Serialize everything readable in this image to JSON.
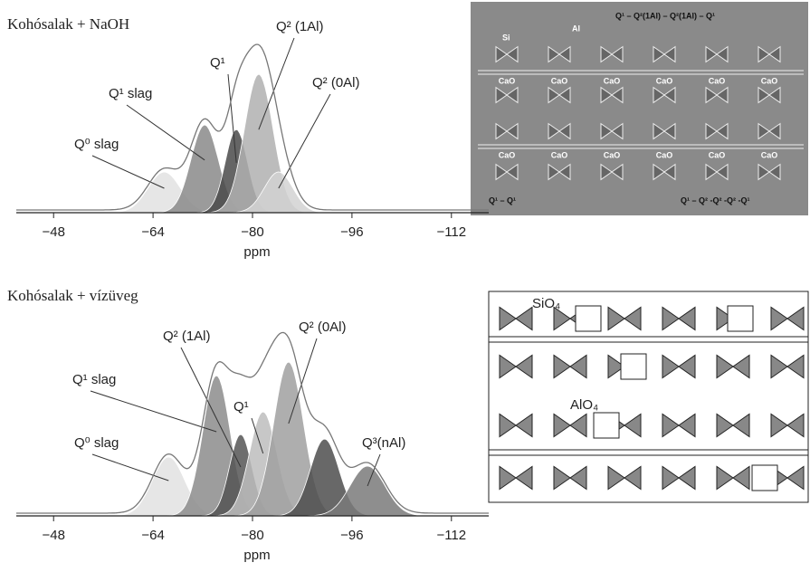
{
  "chart_data": [
    {
      "type": "nmr",
      "title": "Kohósalak + NaOH",
      "x_label": "ppm",
      "xlim": [
        -42,
        -118
      ],
      "ylim": [
        0,
        220
      ],
      "xticks": [
        {
          "value": -48,
          "label": "−48"
        },
        {
          "value": -64,
          "label": "−64"
        },
        {
          "value": -80,
          "label": "−80"
        },
        {
          "value": -96,
          "label": "−96"
        },
        {
          "value": -112,
          "label": "−112"
        }
      ],
      "series": [
        {
          "name": "Q⁰ slag",
          "color": "#e2e2e2",
          "center": -65.8,
          "height": 45,
          "width": 2.6
        },
        {
          "name": "Q¹ slag",
          "color": "#8a8a8a",
          "center": -72.3,
          "height": 97,
          "width": 2.2
        },
        {
          "name": "Q¹",
          "color": "#4a4a4a",
          "center": -77.4,
          "height": 92,
          "width": 1.8
        },
        {
          "name": "Q² (1Al)",
          "color": "#b0b0b0",
          "center": -81,
          "height": 153,
          "width": 2.3
        },
        {
          "name": "Q² (0Al)",
          "color": "#d2d2d2",
          "center": -84.2,
          "height": 45,
          "width": 2.3
        }
      ]
    },
    {
      "type": "nmr",
      "title": "Kohósalak + vízüveg",
      "x_label": "ppm",
      "xlim": [
        -42,
        -118
      ],
      "ylim": [
        0,
        220
      ],
      "xticks": [
        {
          "value": -48,
          "label": "−48"
        },
        {
          "value": -64,
          "label": "−64"
        },
        {
          "value": -80,
          "label": "−80"
        },
        {
          "value": -96,
          "label": "−96"
        },
        {
          "value": -112,
          "label": "−112"
        }
      ],
      "series": [
        {
          "name": "Q⁰ slag",
          "color": "#e2e2e2",
          "center": -66.5,
          "height": 65,
          "width": 2.6
        },
        {
          "name": "Q¹ slag",
          "color": "#8c8c8c",
          "center": -74.2,
          "height": 155,
          "width": 2.2
        },
        {
          "name": "Q² (1Al)",
          "color": "#555555",
          "center": -78.1,
          "height": 90,
          "width": 1.8
        },
        {
          "name": "Q¹",
          "color": "#bdbdbd",
          "center": -81.7,
          "height": 115,
          "width": 2.2
        },
        {
          "name": "Q² (0Al)",
          "color": "#a0a0a0",
          "center": -85.8,
          "height": 170,
          "width": 2.4
        },
        {
          "color": "#4d4d4d",
          "center": -91.6,
          "height": 85,
          "width": 2.3
        },
        {
          "name": "Q³(nAl)",
          "color": "#7a7a7a",
          "center": -98.5,
          "height": 55,
          "width": 2.8
        }
      ]
    }
  ],
  "diagram_top": {
    "si": "Si",
    "al": "Al",
    "caption_top": "Q¹ – Q²(1Al) – Q²(1Al) – Q¹",
    "row1": [
      "CaO",
      "CaO",
      "CaO",
      "CaO",
      "CaO",
      "CaO"
    ],
    "row2": [
      "CaO",
      "CaO",
      "CaO",
      "CaO",
      "CaO",
      "CaO"
    ],
    "caption_left": "Q¹ – Q¹",
    "caption_right": "Q¹ – Q² -Q² -Q² -Q¹"
  },
  "diagram_bottom": {
    "sio4": "SiO₄",
    "alo4": "AlO₄"
  }
}
